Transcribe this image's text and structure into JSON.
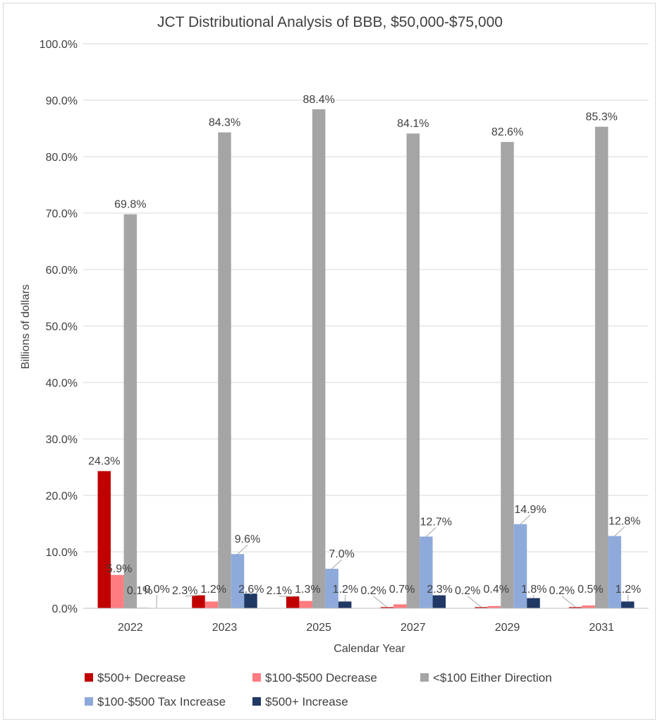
{
  "chart_data": {
    "type": "bar",
    "title": "JCT Distributional Analysis of BBB, $50,000-$75,000",
    "xlabel": "Calendar Year",
    "ylabel": "Billions of dollars",
    "ylim": [
      0,
      100
    ],
    "y_tick_step": 10,
    "y_tick_format": "percent_1dp",
    "grid": true,
    "legend_position": "bottom",
    "categories": [
      "2022",
      "2023",
      "2025",
      "2027",
      "2029",
      "2031"
    ],
    "series": [
      {
        "name": "$500+ Decrease",
        "color": "#c00000",
        "values": [
          24.3,
          2.3,
          2.1,
          0.2,
          0.2,
          0.2
        ]
      },
      {
        "name": "$100-$500 Decrease",
        "color": "#ff7c80",
        "values": [
          5.9,
          1.2,
          1.3,
          0.7,
          0.4,
          0.5
        ]
      },
      {
        "name": "<$100 Either Direction",
        "color": "#a5a5a5",
        "values": [
          69.8,
          84.3,
          88.4,
          84.1,
          82.6,
          85.3
        ]
      },
      {
        "name": "$100-$500 Tax Increase",
        "color": "#8eaadb",
        "values": [
          0.1,
          9.6,
          7.0,
          12.7,
          14.9,
          12.8
        ]
      },
      {
        "name": "$500+ Increase",
        "color": "#203864",
        "values": [
          0.0,
          2.6,
          1.2,
          2.3,
          1.8,
          1.2
        ]
      }
    ]
  }
}
